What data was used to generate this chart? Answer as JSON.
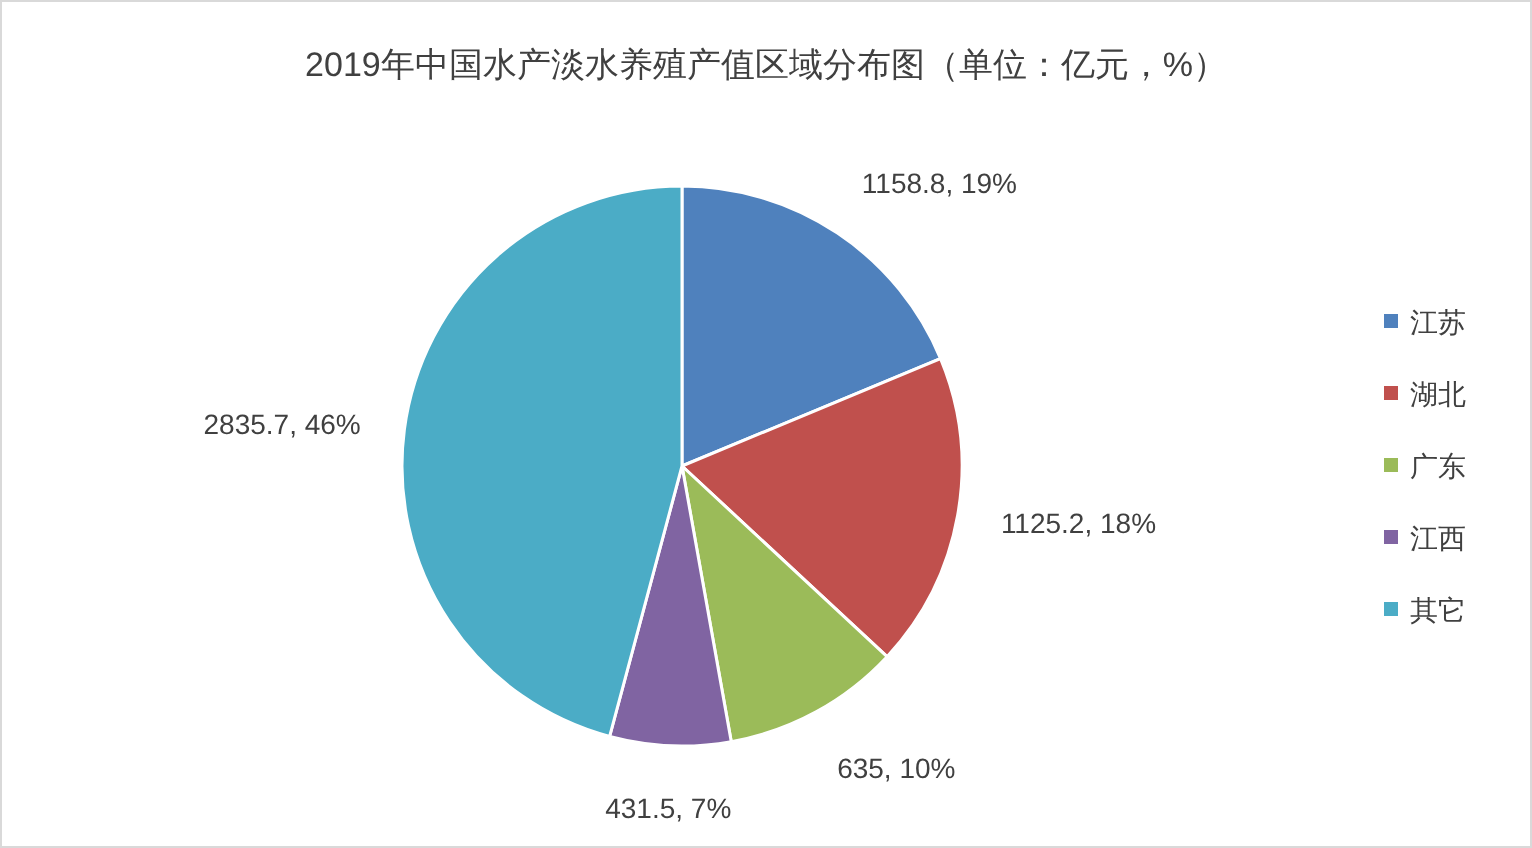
{
  "chart_data": {
    "type": "pie",
    "title": "2019年中国水产淡水养殖产值区域分布图（单位：亿元，%）",
    "categories": [
      "江苏",
      "湖北",
      "广东",
      "江西",
      "其它"
    ],
    "values": [
      1158.8,
      1125.2,
      635,
      431.5,
      2835.7
    ],
    "colors": [
      "#4f81bd",
      "#c0504d",
      "#9bbb59",
      "#8064a2",
      "#4bacc6"
    ],
    "value_labels": [
      "1158.8, 19%",
      "1125.2, 18%",
      "635, 10%",
      "431.5, 7%",
      "2835.7, 46%"
    ],
    "legend": "right"
  }
}
